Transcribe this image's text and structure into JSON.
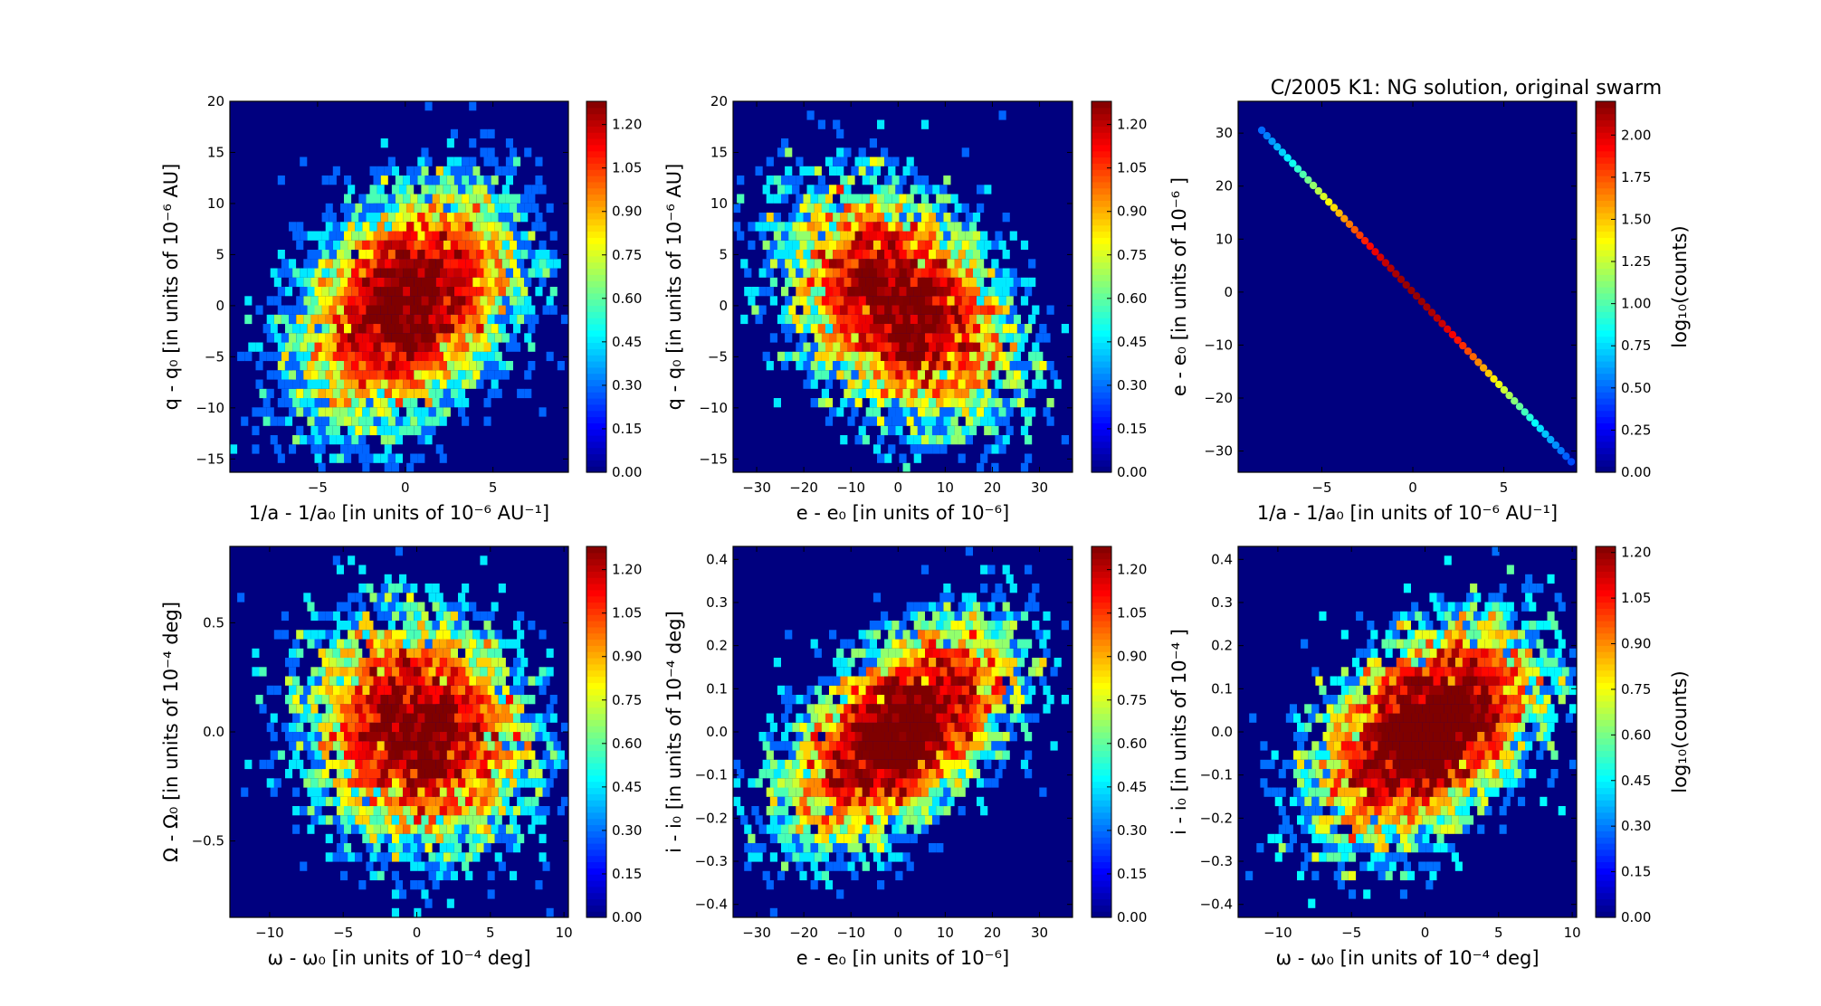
{
  "figure": {
    "title": "C/2005 K1: NG solution, original swarm"
  },
  "chart_data": [
    {
      "type": "heatmap",
      "panel": "top-left",
      "xlabel": "1/a - 1/a₀ [in units of 10⁻⁶ AU⁻¹]",
      "ylabel": "q - q₀ [in units of 10⁻⁶ AU]",
      "xlim": [
        -10,
        9.3
      ],
      "ylim": [
        -16.3,
        20
      ],
      "xticks": [
        -5,
        0,
        5
      ],
      "xticklabels": [
        "−5",
        "0",
        "5"
      ],
      "yticks": [
        -15,
        -10,
        -5,
        0,
        5,
        10,
        15,
        20
      ],
      "yticklabels": [
        "−15",
        "−10",
        "−5",
        "0",
        "5",
        "10",
        "15",
        "20"
      ],
      "distribution": {
        "mean": [
          0,
          0
        ],
        "sigma": [
          3.0,
          5.5
        ],
        "correlation": 0.35,
        "samples": 7000
      },
      "colorbar": {
        "label": "",
        "max": 1.28,
        "ticks": [
          0.0,
          0.15,
          0.3,
          0.45,
          0.6,
          0.75,
          0.9,
          1.05,
          1.2
        ],
        "ticklabels": [
          "0.00",
          "0.15",
          "0.30",
          "0.45",
          "0.60",
          "0.75",
          "0.90",
          "1.05",
          "1.20"
        ]
      }
    },
    {
      "type": "heatmap",
      "panel": "top-center",
      "xlabel": "e - e₀ [in units of 10⁻⁶]",
      "ylabel": "q - q₀ [in units of 10⁻⁶ AU]",
      "xlim": [
        -35,
        37
      ],
      "ylim": [
        -16.3,
        20
      ],
      "xticks": [
        -30,
        -20,
        -10,
        0,
        10,
        20,
        30
      ],
      "xticklabels": [
        "−30",
        "−20",
        "−10",
        "0",
        "10",
        "20",
        "30"
      ],
      "yticks": [
        -15,
        -10,
        -5,
        0,
        5,
        10,
        15,
        20
      ],
      "yticklabels": [
        "−15",
        "−10",
        "−5",
        "0",
        "5",
        "10",
        "15",
        "20"
      ],
      "distribution": {
        "mean": [
          0,
          0
        ],
        "sigma": [
          11.5,
          5.5
        ],
        "correlation": -0.35,
        "samples": 7000
      },
      "colorbar": {
        "label": "",
        "max": 1.28,
        "ticks": [
          0.0,
          0.15,
          0.3,
          0.45,
          0.6,
          0.75,
          0.9,
          1.05,
          1.2
        ],
        "ticklabels": [
          "0.00",
          "0.15",
          "0.30",
          "0.45",
          "0.60",
          "0.75",
          "0.90",
          "1.05",
          "1.20"
        ]
      }
    },
    {
      "type": "heatmap",
      "panel": "top-right",
      "xlabel": "1/a - 1/a₀ [in units of 10⁻⁶ AU⁻¹]",
      "ylabel": "e - e₀ [in units of 10⁻⁶ ]",
      "xlim": [
        -9.6,
        9.0
      ],
      "ylim": [
        -34,
        36
      ],
      "xticks": [
        -5,
        0,
        5
      ],
      "xticklabels": [
        "−5",
        "0",
        "5"
      ],
      "yticks": [
        -30,
        -20,
        -10,
        0,
        10,
        20,
        30
      ],
      "yticklabels": [
        "−30",
        "−20",
        "−10",
        "0",
        "10",
        "20",
        "30"
      ],
      "line": {
        "x_range": [
          -8.3,
          8.7
        ],
        "slope": -3.68
      },
      "colorbar": {
        "label": "log₁₀(counts)",
        "max": 2.2,
        "ticks": [
          0.0,
          0.25,
          0.5,
          0.75,
          1.0,
          1.25,
          1.5,
          1.75,
          2.0
        ],
        "ticklabels": [
          "0.00",
          "0.25",
          "0.50",
          "0.75",
          "1.00",
          "1.25",
          "1.50",
          "1.75",
          "2.00"
        ]
      }
    },
    {
      "type": "heatmap",
      "panel": "bottom-left",
      "xlabel": "ω - ω₀ [in units of 10⁻⁴ deg]",
      "ylabel": "Ω - Ω₀ [in units of 10⁻⁴ deg]",
      "xlim": [
        -12.7,
        10.3
      ],
      "ylim": [
        -0.85,
        0.85
      ],
      "xticks": [
        -10,
        -5,
        0,
        5,
        10
      ],
      "xticklabels": [
        "−10",
        "−5",
        "0",
        "5",
        "10"
      ],
      "yticks": [
        -0.5,
        0.0,
        0.5
      ],
      "yticklabels": [
        "−0.5",
        "0.0",
        "0.5"
      ],
      "distribution": {
        "mean": [
          0,
          0
        ],
        "sigma": [
          3.6,
          0.25
        ],
        "correlation": -0.1,
        "samples": 7000
      },
      "colorbar": {
        "label": "",
        "max": 1.28,
        "ticks": [
          0.0,
          0.15,
          0.3,
          0.45,
          0.6,
          0.75,
          0.9,
          1.05,
          1.2
        ],
        "ticklabels": [
          "0.00",
          "0.15",
          "0.30",
          "0.45",
          "0.60",
          "0.75",
          "0.90",
          "1.05",
          "1.20"
        ]
      }
    },
    {
      "type": "heatmap",
      "panel": "bottom-center",
      "xlabel": "e - e₀ [in units of 10⁻⁶]",
      "ylabel": "i - i₀ [in units of 10⁻⁴ deg]",
      "xlim": [
        -35,
        37
      ],
      "ylim": [
        -0.43,
        0.43
      ],
      "xticks": [
        -30,
        -20,
        -10,
        0,
        10,
        20,
        30
      ],
      "xticklabels": [
        "−30",
        "−20",
        "−10",
        "0",
        "10",
        "20",
        "30"
      ],
      "yticks": [
        -0.4,
        -0.3,
        -0.2,
        -0.1,
        0.0,
        0.1,
        0.2,
        0.3,
        0.4
      ],
      "yticklabels": [
        "−0.4",
        "−0.3",
        "−0.2",
        "−0.1",
        "0.0",
        "0.1",
        "0.2",
        "0.3",
        "0.4"
      ],
      "distribution": {
        "mean": [
          0,
          0
        ],
        "sigma": [
          11.5,
          0.12
        ],
        "correlation": 0.55,
        "samples": 7000
      },
      "colorbar": {
        "label": "",
        "max": 1.28,
        "ticks": [
          0.0,
          0.15,
          0.3,
          0.45,
          0.6,
          0.75,
          0.9,
          1.05,
          1.2
        ],
        "ticklabels": [
          "0.00",
          "0.15",
          "0.30",
          "0.45",
          "0.60",
          "0.75",
          "0.90",
          "1.05",
          "1.20"
        ]
      }
    },
    {
      "type": "heatmap",
      "panel": "bottom-right",
      "xlabel": "ω - ω₀ [in units of 10⁻⁴ deg]",
      "ylabel": "i - i₀ [in units of 10⁻⁴ ]",
      "xlim": [
        -12.7,
        10.3
      ],
      "ylim": [
        -0.43,
        0.43
      ],
      "xticks": [
        -10,
        -5,
        0,
        5,
        10
      ],
      "xticklabels": [
        "−10",
        "−5",
        "0",
        "5",
        "10"
      ],
      "yticks": [
        -0.4,
        -0.3,
        -0.2,
        -0.1,
        0.0,
        0.1,
        0.2,
        0.3,
        0.4
      ],
      "yticklabels": [
        "−0.4",
        "−0.3",
        "−0.2",
        "−0.1",
        "0.0",
        "0.1",
        "0.2",
        "0.3",
        "0.4"
      ],
      "distribution": {
        "mean": [
          0,
          0
        ],
        "sigma": [
          3.6,
          0.12
        ],
        "correlation": 0.45,
        "samples": 7000
      },
      "colorbar": {
        "label": "log₁₀(counts)",
        "max": 1.22,
        "ticks": [
          0.0,
          0.15,
          0.3,
          0.45,
          0.6,
          0.75,
          0.9,
          1.05,
          1.2
        ],
        "ticklabels": [
          "0.00",
          "0.15",
          "0.30",
          "0.45",
          "0.60",
          "0.75",
          "0.90",
          "1.05",
          "1.20"
        ]
      }
    }
  ],
  "colors": {
    "background": "#00007f",
    "jet": [
      "#00007f",
      "#0000ff",
      "#007fff",
      "#00ffff",
      "#7fff7f",
      "#ffff00",
      "#ff7f00",
      "#ff0000",
      "#7f0000"
    ]
  }
}
